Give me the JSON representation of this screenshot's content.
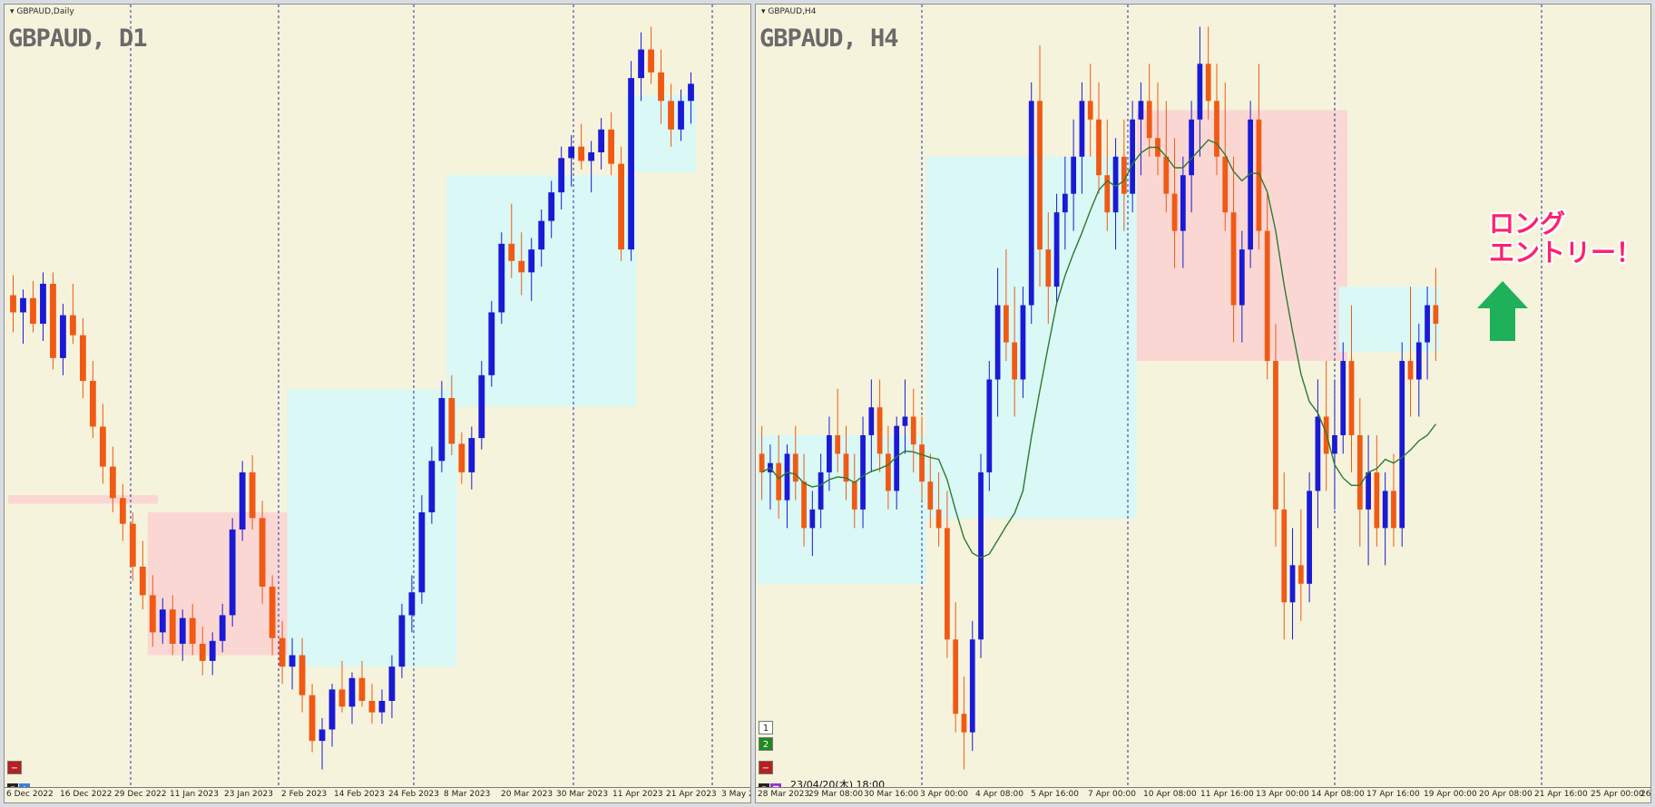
{
  "colors": {
    "background": "#f6f3dc",
    "bull": "#1a1ad6",
    "bear": "#f05a14",
    "grid": "#1e2fa8",
    "zone_blue": "#d9f8f6",
    "zone_pink": "#fbd7d4",
    "ma": "#2e7a2e",
    "annotation": "#ff1f6e",
    "arrow": "#1fb05a"
  },
  "left_chart": {
    "symbol_tag": "GBPAUD,Daily",
    "title": "GBPAUD, D1",
    "x_labels": [
      "6 Dec 2022",
      "16 Dec 2022",
      "29 Dec 2022",
      "11 Jan 2023",
      "23 Jan 2023",
      "2 Feb 2023",
      "14 Feb 2023",
      "24 Feb 2023",
      "8 Mar 2023",
      "20 Mar 2023",
      "30 Mar 2023",
      "11 Apr 2023",
      "21 Apr 2023",
      "3 May 2"
    ],
    "corner_icon": "minus-square-icon",
    "status_icons": [
      "eye-icon",
      "star-icon"
    ]
  },
  "right_chart": {
    "symbol_tag": "GBPAUD,H4",
    "title": "GBPAUD, H4",
    "x_labels": [
      "28 Mar 2023",
      "29 Mar 08:00",
      "30 Mar 16:00",
      "3 Apr 00:00",
      "4 Apr 08:00",
      "5 Apr 16:00",
      "7 Apr 00:00",
      "10 Apr 08:00",
      "11 Apr 16:00",
      "13 Apr 00:00",
      "14 Apr 08:00",
      "17 Apr 16:00",
      "19 Apr 00:00",
      "20 Apr 08:00",
      "21 Apr 16:00",
      "25 Apr 00:00",
      "26 A"
    ],
    "buttons": [
      "1",
      "2"
    ],
    "timestamp": "23/04/20(木) 18:00",
    "annotation_line1": "ロング",
    "annotation_line2": "エントリー！",
    "arrow_icon": "up-arrow-icon"
  },
  "chart_data": [
    {
      "type": "candlestick",
      "title": "GBPAUD, D1",
      "timeframe": "Daily",
      "x_start": "6 Dec 2022",
      "x_end": "21 Apr 2023",
      "candles_ohlc": [
        [
          1.798,
          1.805,
          1.785,
          1.792
        ],
        [
          1.792,
          1.8,
          1.781,
          1.797
        ],
        [
          1.797,
          1.803,
          1.785,
          1.788
        ],
        [
          1.788,
          1.806,
          1.782,
          1.802
        ],
        [
          1.802,
          1.806,
          1.772,
          1.776
        ],
        [
          1.776,
          1.795,
          1.77,
          1.791
        ],
        [
          1.791,
          1.802,
          1.781,
          1.784
        ],
        [
          1.784,
          1.79,
          1.762,
          1.768
        ],
        [
          1.768,
          1.775,
          1.748,
          1.752
        ],
        [
          1.752,
          1.76,
          1.732,
          1.738
        ],
        [
          1.738,
          1.745,
          1.722,
          1.727
        ],
        [
          1.727,
          1.732,
          1.712,
          1.718
        ],
        [
          1.718,
          1.722,
          1.698,
          1.703
        ],
        [
          1.703,
          1.712,
          1.688,
          1.693
        ],
        [
          1.693,
          1.7,
          1.675,
          1.68
        ],
        [
          1.68,
          1.692,
          1.676,
          1.688
        ],
        [
          1.688,
          1.693,
          1.672,
          1.676
        ],
        [
          1.676,
          1.688,
          1.67,
          1.685
        ],
        [
          1.685,
          1.69,
          1.672,
          1.676
        ],
        [
          1.676,
          1.682,
          1.665,
          1.67
        ],
        [
          1.67,
          1.68,
          1.665,
          1.677
        ],
        [
          1.677,
          1.69,
          1.673,
          1.686
        ],
        [
          1.686,
          1.72,
          1.682,
          1.716
        ],
        [
          1.716,
          1.74,
          1.712,
          1.736
        ],
        [
          1.736,
          1.742,
          1.716,
          1.72
        ],
        [
          1.72,
          1.726,
          1.69,
          1.696
        ],
        [
          1.696,
          1.7,
          1.672,
          1.678
        ],
        [
          1.678,
          1.684,
          1.662,
          1.668
        ],
        [
          1.668,
          1.678,
          1.66,
          1.672
        ],
        [
          1.672,
          1.678,
          1.652,
          1.658
        ],
        [
          1.658,
          1.662,
          1.638,
          1.642
        ],
        [
          1.642,
          1.65,
          1.632,
          1.646
        ],
        [
          1.646,
          1.662,
          1.64,
          1.66
        ],
        [
          1.66,
          1.67,
          1.652,
          1.654
        ],
        [
          1.654,
          1.666,
          1.648,
          1.664
        ],
        [
          1.664,
          1.67,
          1.654,
          1.656
        ],
        [
          1.656,
          1.662,
          1.648,
          1.652
        ],
        [
          1.652,
          1.66,
          1.648,
          1.656
        ],
        [
          1.656,
          1.672,
          1.65,
          1.668
        ],
        [
          1.668,
          1.69,
          1.664,
          1.686
        ],
        [
          1.686,
          1.7,
          1.68,
          1.694
        ],
        [
          1.694,
          1.728,
          1.69,
          1.722
        ],
        [
          1.722,
          1.745,
          1.718,
          1.74
        ],
        [
          1.74,
          1.768,
          1.736,
          1.762
        ],
        [
          1.762,
          1.77,
          1.742,
          1.746
        ],
        [
          1.746,
          1.75,
          1.732,
          1.736
        ],
        [
          1.736,
          1.752,
          1.73,
          1.748
        ],
        [
          1.748,
          1.775,
          1.744,
          1.77
        ],
        [
          1.77,
          1.796,
          1.766,
          1.792
        ],
        [
          1.792,
          1.82,
          1.788,
          1.816
        ],
        [
          1.816,
          1.83,
          1.804,
          1.81
        ],
        [
          1.81,
          1.82,
          1.798,
          1.806
        ],
        [
          1.806,
          1.818,
          1.796,
          1.814
        ],
        [
          1.814,
          1.828,
          1.808,
          1.824
        ],
        [
          1.824,
          1.838,
          1.818,
          1.834
        ],
        [
          1.834,
          1.85,
          1.828,
          1.846
        ],
        [
          1.846,
          1.854,
          1.836,
          1.85
        ],
        [
          1.85,
          1.858,
          1.842,
          1.845
        ],
        [
          1.845,
          1.852,
          1.834,
          1.848
        ],
        [
          1.848,
          1.86,
          1.842,
          1.856
        ],
        [
          1.856,
          1.862,
          1.84,
          1.844
        ],
        [
          1.844,
          1.85,
          1.81,
          1.814
        ],
        [
          1.814,
          1.88,
          1.81,
          1.874
        ],
        [
          1.874,
          1.89,
          1.866,
          1.884
        ],
        [
          1.884,
          1.892,
          1.872,
          1.876
        ],
        [
          1.876,
          1.884,
          1.858,
          1.866
        ],
        [
          1.866,
          1.872,
          1.85,
          1.856
        ],
        [
          1.856,
          1.87,
          1.852,
          1.866
        ],
        [
          1.866,
          1.876,
          1.858,
          1.872
        ]
      ],
      "zones": [
        {
          "color": "pink",
          "from_candle": 0,
          "to_candle": 14,
          "top": 1.728,
          "bottom": 1.725
        },
        {
          "color": "pink",
          "from_candle": 14,
          "to_candle": 28,
          "top": 1.722,
          "bottom": 1.672
        },
        {
          "color": "blue",
          "from_candle": 28,
          "to_candle": 44,
          "top": 1.765,
          "bottom": 1.668
        },
        {
          "color": "blue",
          "from_candle": 44,
          "to_candle": 62,
          "top": 1.84,
          "bottom": 1.759
        },
        {
          "color": "blue",
          "from_candle": 62,
          "to_candle": 76,
          "top": 1.868,
          "bottom": 1.841
        }
      ]
    },
    {
      "type": "candlestick",
      "title": "GBPAUD, H4",
      "timeframe": "H4",
      "x_start": "28 Mar 2023",
      "x_end": "20 Apr 2023 18:00",
      "candles_ohlc": [
        [
          1.848,
          1.851,
          1.843,
          1.846
        ],
        [
          1.846,
          1.849,
          1.842,
          1.847
        ],
        [
          1.847,
          1.85,
          1.841,
          1.843
        ],
        [
          1.843,
          1.849,
          1.84,
          1.848
        ],
        [
          1.848,
          1.851,
          1.843,
          1.845
        ],
        [
          1.845,
          1.848,
          1.838,
          1.84
        ],
        [
          1.84,
          1.844,
          1.837,
          1.842
        ],
        [
          1.842,
          1.848,
          1.84,
          1.846
        ],
        [
          1.846,
          1.852,
          1.844,
          1.85
        ],
        [
          1.85,
          1.855,
          1.846,
          1.848
        ],
        [
          1.848,
          1.851,
          1.843,
          1.845
        ],
        [
          1.845,
          1.848,
          1.84,
          1.842
        ],
        [
          1.842,
          1.852,
          1.84,
          1.85
        ],
        [
          1.85,
          1.856,
          1.846,
          1.853
        ],
        [
          1.853,
          1.856,
          1.846,
          1.848
        ],
        [
          1.848,
          1.851,
          1.842,
          1.844
        ],
        [
          1.844,
          1.852,
          1.842,
          1.851
        ],
        [
          1.851,
          1.856,
          1.848,
          1.852
        ],
        [
          1.852,
          1.855,
          1.846,
          1.849
        ],
        [
          1.849,
          1.852,
          1.843,
          1.845
        ],
        [
          1.845,
          1.848,
          1.84,
          1.842
        ],
        [
          1.842,
          1.846,
          1.838,
          1.84
        ],
        [
          1.84,
          1.844,
          1.826,
          1.828
        ],
        [
          1.828,
          1.832,
          1.818,
          1.82
        ],
        [
          1.82,
          1.824,
          1.814,
          1.818
        ],
        [
          1.818,
          1.83,
          1.816,
          1.828
        ],
        [
          1.828,
          1.848,
          1.826,
          1.846
        ],
        [
          1.846,
          1.858,
          1.844,
          1.856
        ],
        [
          1.856,
          1.868,
          1.852,
          1.864
        ],
        [
          1.864,
          1.87,
          1.858,
          1.86
        ],
        [
          1.86,
          1.866,
          1.852,
          1.856
        ],
        [
          1.856,
          1.866,
          1.854,
          1.864
        ],
        [
          1.864,
          1.888,
          1.862,
          1.886
        ],
        [
          1.886,
          1.892,
          1.866,
          1.87
        ],
        [
          1.87,
          1.874,
          1.862,
          1.866
        ],
        [
          1.866,
          1.876,
          1.864,
          1.874
        ],
        [
          1.874,
          1.88,
          1.87,
          1.876
        ],
        [
          1.876,
          1.884,
          1.872,
          1.88
        ],
        [
          1.88,
          1.888,
          1.876,
          1.886
        ],
        [
          1.886,
          1.89,
          1.88,
          1.884
        ],
        [
          1.884,
          1.888,
          1.876,
          1.878
        ],
        [
          1.878,
          1.884,
          1.872,
          1.874
        ],
        [
          1.874,
          1.882,
          1.87,
          1.88
        ],
        [
          1.88,
          1.884,
          1.872,
          1.876
        ],
        [
          1.876,
          1.886,
          1.874,
          1.884
        ],
        [
          1.884,
          1.888,
          1.878,
          1.886
        ],
        [
          1.886,
          1.89,
          1.88,
          1.882
        ],
        [
          1.882,
          1.888,
          1.878,
          1.88
        ],
        [
          1.88,
          1.886,
          1.874,
          1.876
        ],
        [
          1.876,
          1.882,
          1.868,
          1.872
        ],
        [
          1.872,
          1.88,
          1.868,
          1.878
        ],
        [
          1.878,
          1.886,
          1.874,
          1.884
        ],
        [
          1.884,
          1.894,
          1.88,
          1.89
        ],
        [
          1.89,
          1.894,
          1.884,
          1.886
        ],
        [
          1.886,
          1.89,
          1.878,
          1.88
        ],
        [
          1.88,
          1.888,
          1.872,
          1.874
        ],
        [
          1.874,
          1.88,
          1.86,
          1.864
        ],
        [
          1.864,
          1.872,
          1.86,
          1.87
        ],
        [
          1.87,
          1.886,
          1.868,
          1.884
        ],
        [
          1.884,
          1.89,
          1.87,
          1.872
        ],
        [
          1.872,
          1.876,
          1.856,
          1.858
        ],
        [
          1.858,
          1.862,
          1.838,
          1.842
        ],
        [
          1.842,
          1.846,
          1.828,
          1.832
        ],
        [
          1.832,
          1.84,
          1.828,
          1.836
        ],
        [
          1.836,
          1.842,
          1.83,
          1.834
        ],
        [
          1.834,
          1.846,
          1.832,
          1.844
        ],
        [
          1.844,
          1.856,
          1.84,
          1.852
        ],
        [
          1.852,
          1.858,
          1.844,
          1.848
        ],
        [
          1.848,
          1.856,
          1.842,
          1.85
        ],
        [
          1.85,
          1.86,
          1.848,
          1.858
        ],
        [
          1.858,
          1.864,
          1.846,
          1.85
        ],
        [
          1.85,
          1.854,
          1.838,
          1.842
        ],
        [
          1.842,
          1.85,
          1.836,
          1.846
        ],
        [
          1.846,
          1.85,
          1.838,
          1.84
        ],
        [
          1.84,
          1.846,
          1.836,
          1.844
        ],
        [
          1.844,
          1.848,
          1.838,
          1.84
        ],
        [
          1.84,
          1.86,
          1.838,
          1.858
        ],
        [
          1.858,
          1.866,
          1.852,
          1.856
        ],
        [
          1.856,
          1.862,
          1.852,
          1.86
        ],
        [
          1.86,
          1.866,
          1.856,
          1.864
        ],
        [
          1.864,
          1.868,
          1.858,
          1.862
        ]
      ],
      "moving_average": "green line",
      "zones": [
        {
          "color": "blue",
          "from_candle": 0,
          "to_candle": 19,
          "top": 1.85,
          "bottom": 1.834
        },
        {
          "color": "blue",
          "from_candle": 20,
          "to_candle": 44,
          "top": 1.88,
          "bottom": 1.841
        },
        {
          "color": "pink",
          "from_candle": 45,
          "to_candle": 69,
          "top": 1.885,
          "bottom": 1.858
        },
        {
          "color": "blue",
          "from_candle": 69,
          "to_candle": 89,
          "top": 1.866,
          "bottom": 1.859
        }
      ]
    }
  ]
}
